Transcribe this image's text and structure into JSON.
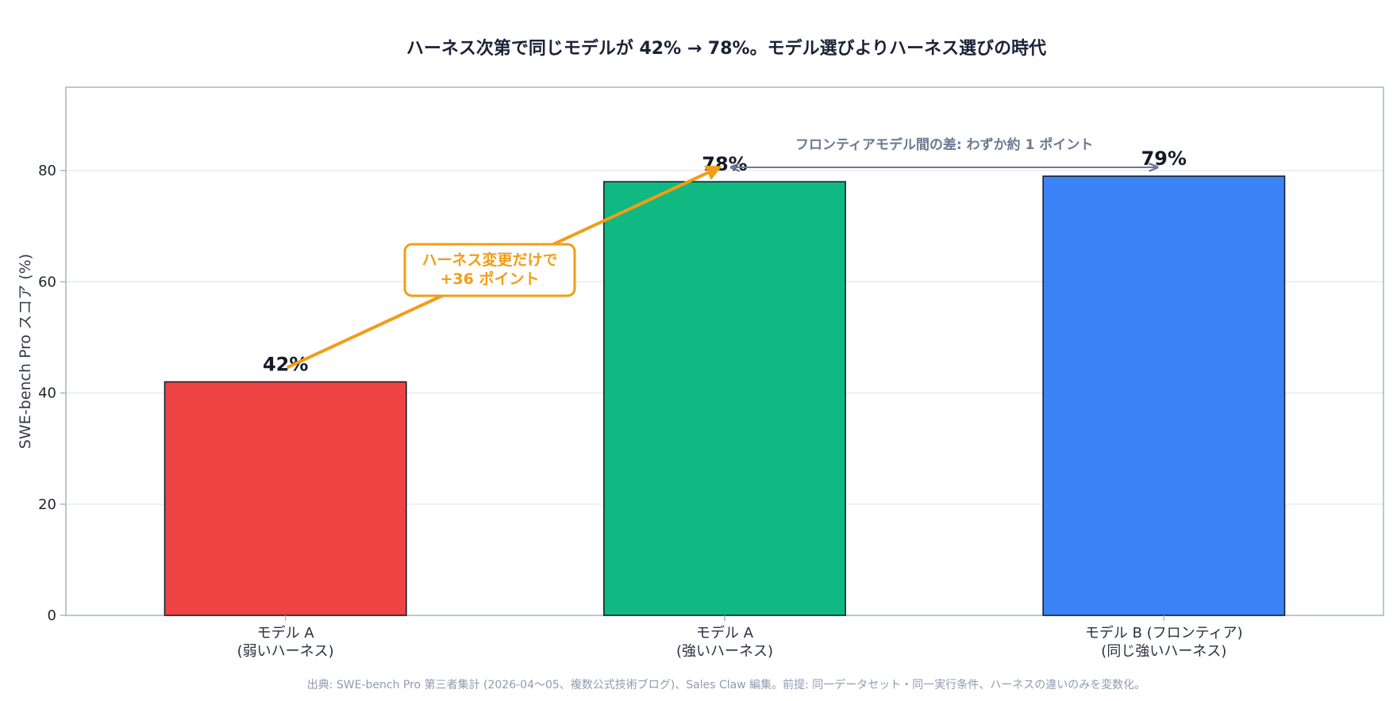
{
  "chart_data": {
    "type": "bar",
    "title": "ハーネス次第で同じモデルが 42% → 78%。モデル選びよりハーネス選びの時代",
    "ylabel": "SWE-bench Pro スコア (%)",
    "xlabel": "",
    "ylim": [
      0,
      95
    ],
    "yticks": [
      0,
      20,
      40,
      60,
      80
    ],
    "grid": true,
    "categories": [
      [
        "モデル A",
        "(弱いハーネス)"
      ],
      [
        "モデル A",
        "(強いハーネス)"
      ],
      [
        "モデル B (フロンティア)",
        "(同じ強いハーネス)"
      ]
    ],
    "values": [
      42,
      78,
      79
    ],
    "value_labels": [
      "42%",
      "78%",
      "79%"
    ],
    "colors": [
      "#ef4444",
      "#10b981",
      "#3b82f6"
    ],
    "annotations": {
      "callout": {
        "lines": [
          "ハーネス変更だけで",
          "+36 ポイント"
        ],
        "color": "#f29d16"
      },
      "gap_label": "フロンティアモデル間の差: わずか約 1 ポイント",
      "gap_color": "#6b7a92"
    },
    "source": "出典: SWE-bench Pro 第三者集計 (2026-04〜05、複数公式技術ブログ)、Sales Claw 編集。前提: 同一データセット・同一実行条件、ハーネスの違いのみを変数化。"
  }
}
